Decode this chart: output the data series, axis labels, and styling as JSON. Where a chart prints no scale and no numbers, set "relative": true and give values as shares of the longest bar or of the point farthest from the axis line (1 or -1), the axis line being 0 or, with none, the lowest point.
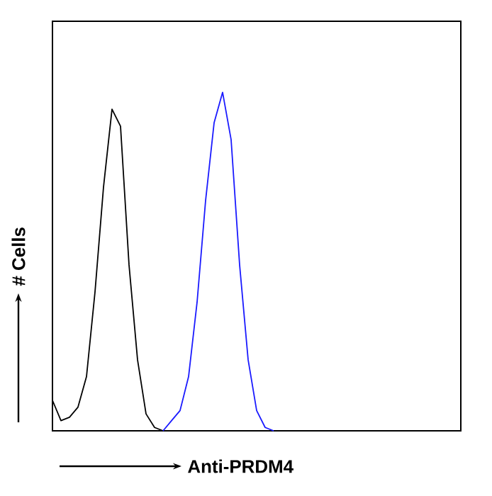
{
  "chart_data": {
    "type": "line",
    "relative": true,
    "xlabel": "Anti-PRDM4",
    "ylabel": "# Cells",
    "categories": [
      null,
      null,
      null,
      null,
      null,
      null,
      null,
      null,
      null,
      null,
      null,
      null,
      null,
      null,
      null,
      null,
      null,
      null,
      null,
      null,
      null,
      null,
      null,
      null,
      null,
      null,
      null,
      null,
      null,
      null,
      null,
      null,
      null,
      null,
      null,
      null,
      null,
      null,
      null,
      null,
      null,
      null,
      null,
      null,
      null,
      null,
      null,
      null,
      null
    ],
    "series": [
      {
        "color": "#000000",
        "values": [
          0.09,
          0.03,
          0.04,
          0.07,
          0.16,
          0.41,
          0.72,
          0.95,
          0.9,
          0.49,
          0.21,
          0.05,
          0.01,
          0,
          null,
          null,
          null,
          null,
          null,
          null,
          null,
          null,
          null,
          null,
          null,
          null,
          null,
          null,
          null,
          null,
          null,
          null,
          null,
          null,
          null,
          null,
          null,
          null,
          null,
          null,
          null,
          null,
          null,
          null,
          null,
          null,
          null,
          null,
          null
        ]
      },
      {
        "color": "#1a1aff",
        "values": [
          null,
          null,
          null,
          null,
          null,
          null,
          null,
          null,
          null,
          null,
          null,
          null,
          null,
          0,
          0.03,
          0.06,
          0.16,
          0.38,
          0.68,
          0.91,
          1.0,
          0.86,
          0.49,
          0.21,
          0.06,
          0.01,
          0,
          null,
          null,
          null,
          null,
          null,
          null,
          null,
          null,
          null,
          null,
          null,
          null,
          null,
          null,
          null,
          null,
          null,
          null,
          null,
          null,
          null,
          null
        ]
      }
    ]
  }
}
